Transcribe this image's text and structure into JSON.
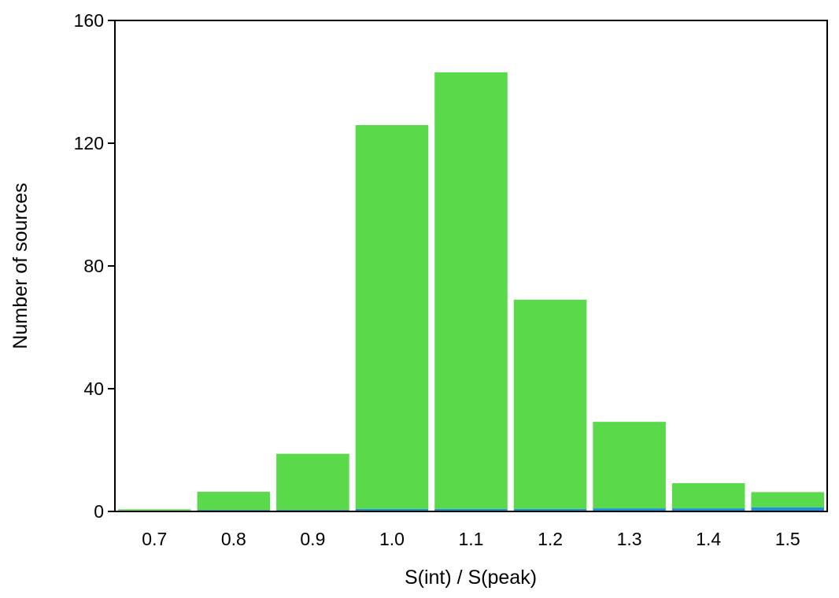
{
  "chart_data": {
    "type": "bar",
    "title": "",
    "xlabel": "S(int) / S(peak)",
    "ylabel": "Number  of  sources",
    "categories": [
      "0.7",
      "0.8",
      "0.9",
      "1.0",
      "1.1",
      "1.2",
      "1.3",
      "1.4",
      "1.5"
    ],
    "stacked": true,
    "series": [
      {
        "values": [
          0.3,
          0.5,
          0.5,
          0.8,
          0.8,
          0.8,
          1.0,
          1.0,
          1.3
        ],
        "color": "#1a8fe0"
      },
      {
        "values": [
          0.4,
          5.9,
          18.3,
          125.1,
          142.3,
          68.2,
          28.2,
          8.2,
          5.0
        ],
        "color": "#5ad94a"
      }
    ],
    "ylim": [
      0,
      160
    ],
    "yticks": [
      0,
      40,
      80,
      120,
      160
    ],
    "grid": false,
    "legend": "none"
  }
}
